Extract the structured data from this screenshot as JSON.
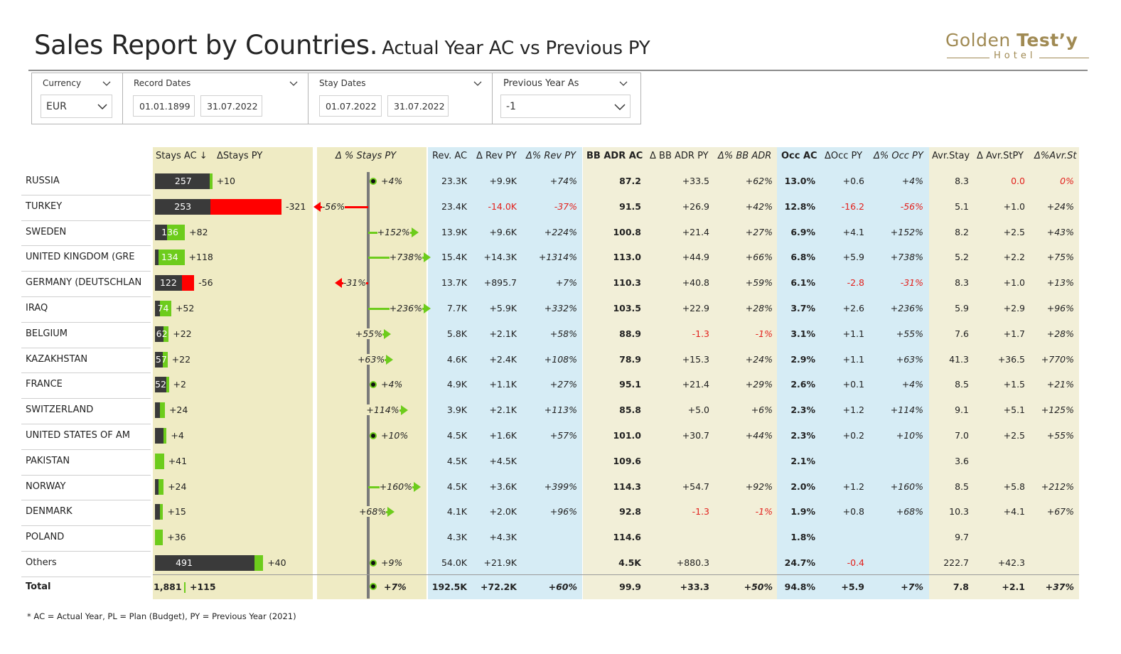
{
  "title": {
    "main": "Sales Report by Countries.",
    "sub": "Actual Year AC vs Previous PY"
  },
  "logo": {
    "part1": "Golden ",
    "part2": "Test’y",
    "sub": "Hotel"
  },
  "filters": {
    "currency": {
      "label": "Currency",
      "value": "EUR"
    },
    "record_dates": {
      "label": "Record Dates",
      "from": "01.01.1899",
      "to": "31.07.2022"
    },
    "stay_dates": {
      "label": "Stay Dates",
      "from": "01.07.2022",
      "to": "31.07.2022"
    },
    "previous_year": {
      "label": "Previous Year As",
      "value": "-1"
    }
  },
  "headers": {
    "stays_ac": "Stays AC ↓",
    "stays_py": "ΔStays PY",
    "pct_stays_py": "Δ % Stays PY",
    "rev_ac": "Rev. AC",
    "rev_py": "Δ Rev PY",
    "pct_rev_py": "Δ% Rev PY",
    "bb_adr_ac": "BB ADR AC",
    "bb_adr_py": "Δ BB ADR PY",
    "pct_bb_adr": "Δ% BB ADR",
    "occ_ac": "Occ AC",
    "occ_py": "ΔOcc PY",
    "pct_occ_py": "Δ% Occ PY",
    "avr_stay": "Avr.Stay",
    "avr_stpy": "Δ Avr.StPY",
    "pct_avr_st": "Δ%Avr.St"
  },
  "colors": {
    "dark": "#3a3a3a",
    "green": "#6dcc1c",
    "red": "#ff0000",
    "beige": "#efebc4",
    "blue": "#d6ecf5",
    "beige_light": "#f2efd8"
  },
  "rows": [
    {
      "country": "RUSSIA",
      "stays_ac": 257,
      "stays_ac_label": "257",
      "delta_stays": 10,
      "delta_stays_label": "+10",
      "pct_stays": 4,
      "pct_stays_label": "+4%",
      "rev_ac": "23.3K",
      "rev_py": "+9.9K",
      "pct_rev": "+74%",
      "adr": "87.2",
      "adr_py": "+33.5",
      "pct_adr": "+62%",
      "occ": "13.0%",
      "occ_py": "+0.6",
      "pct_occ": "+4%",
      "avr": "8.3",
      "avr_py": "0.0",
      "pct_avr": "0%"
    },
    {
      "country": "TURKEY",
      "stays_ac": 253,
      "stays_ac_label": "253",
      "delta_stays": -321,
      "delta_stays_label": "-321",
      "pct_stays": -56,
      "pct_stays_label": "-56%",
      "rev_ac": "23.4K",
      "rev_py": "-14.0K",
      "pct_rev": "-37%",
      "adr": "91.5",
      "adr_py": "+26.9",
      "pct_adr": "+42%",
      "occ": "12.8%",
      "occ_py": "-16.2",
      "pct_occ": "-56%",
      "avr": "5.1",
      "avr_py": "+1.0",
      "pct_avr": "+24%"
    },
    {
      "country": "SWEDEN",
      "stays_ac": 136,
      "stays_ac_label": "136",
      "delta_stays": 82,
      "delta_stays_label": "+82",
      "pct_stays": 152,
      "pct_stays_label": "+152%",
      "rev_ac": "13.9K",
      "rev_py": "+9.6K",
      "pct_rev": "+224%",
      "adr": "100.8",
      "adr_py": "+21.4",
      "pct_adr": "+27%",
      "occ": "6.9%",
      "occ_py": "+4.1",
      "pct_occ": "+152%",
      "avr": "8.2",
      "avr_py": "+2.5",
      "pct_avr": "+43%"
    },
    {
      "country": "UNITED KINGDOM (GRE",
      "stays_ac": 134,
      "stays_ac_label": "134",
      "delta_stays": 118,
      "delta_stays_label": "+118",
      "pct_stays": 738,
      "pct_stays_label": "+738%",
      "rev_ac": "15.4K",
      "rev_py": "+14.3K",
      "pct_rev": "+1314%",
      "adr": "113.0",
      "adr_py": "+44.9",
      "pct_adr": "+66%",
      "occ": "6.8%",
      "occ_py": "+5.9",
      "pct_occ": "+738%",
      "avr": "5.2",
      "avr_py": "+2.2",
      "pct_avr": "+75%"
    },
    {
      "country": "GERMANY (DEUTSCHLAN",
      "stays_ac": 122,
      "stays_ac_label": "122",
      "delta_stays": -56,
      "delta_stays_label": "-56",
      "pct_stays": -31,
      "pct_stays_label": "-31%",
      "rev_ac": "13.7K",
      "rev_py": "+895.7",
      "pct_rev": "+7%",
      "adr": "110.3",
      "adr_py": "+40.8",
      "pct_adr": "+59%",
      "occ": "6.1%",
      "occ_py": "-2.8",
      "pct_occ": "-31%",
      "avr": "8.3",
      "avr_py": "+1.0",
      "pct_avr": "+13%"
    },
    {
      "country": "IRAQ",
      "stays_ac": 74,
      "stays_ac_label": "74",
      "delta_stays": 52,
      "delta_stays_label": "+52",
      "pct_stays": 236,
      "pct_stays_label": "+236%",
      "rev_ac": "7.7K",
      "rev_py": "+5.9K",
      "pct_rev": "+332%",
      "adr": "103.5",
      "adr_py": "+22.9",
      "pct_adr": "+28%",
      "occ": "3.7%",
      "occ_py": "+2.6",
      "pct_occ": "+236%",
      "avr": "5.9",
      "avr_py": "+2.9",
      "pct_avr": "+96%"
    },
    {
      "country": "BELGIUM",
      "stays_ac": 62,
      "stays_ac_label": "62",
      "delta_stays": 22,
      "delta_stays_label": "+22",
      "pct_stays": 55,
      "pct_stays_label": "+55%",
      "rev_ac": "5.8K",
      "rev_py": "+2.1K",
      "pct_rev": "+58%",
      "adr": "88.9",
      "adr_py": "-1.3",
      "pct_adr": "-1%",
      "occ": "3.1%",
      "occ_py": "+1.1",
      "pct_occ": "+55%",
      "avr": "7.6",
      "avr_py": "+1.7",
      "pct_avr": "+28%"
    },
    {
      "country": "KAZAKHSTAN",
      "stays_ac": 57,
      "stays_ac_label": "57",
      "delta_stays": 22,
      "delta_stays_label": "+22",
      "pct_stays": 63,
      "pct_stays_label": "+63%",
      "rev_ac": "4.6K",
      "rev_py": "+2.4K",
      "pct_rev": "+108%",
      "adr": "78.9",
      "adr_py": "+15.3",
      "pct_adr": "+24%",
      "occ": "2.9%",
      "occ_py": "+1.1",
      "pct_occ": "+63%",
      "avr": "41.3",
      "avr_py": "+36.5",
      "pct_avr": "+770%"
    },
    {
      "country": "FRANCE",
      "stays_ac": 52,
      "stays_ac_label": "52",
      "delta_stays": 2,
      "delta_stays_label": "+2",
      "pct_stays": 4,
      "pct_stays_label": "+4%",
      "rev_ac": "4.9K",
      "rev_py": "+1.1K",
      "pct_rev": "+27%",
      "adr": "95.1",
      "adr_py": "+21.4",
      "pct_adr": "+29%",
      "occ": "2.6%",
      "occ_py": "+0.1",
      "pct_occ": "+4%",
      "avr": "8.5",
      "avr_py": "+1.5",
      "pct_avr": "+21%"
    },
    {
      "country": "SWITZERLAND",
      "stays_ac": 45,
      "stays_ac_label": "",
      "delta_stays": 24,
      "delta_stays_label": "+24",
      "pct_stays": 114,
      "pct_stays_label": "+114%",
      "rev_ac": "3.9K",
      "rev_py": "+2.1K",
      "pct_rev": "+113%",
      "adr": "85.8",
      "adr_py": "+5.0",
      "pct_adr": "+6%",
      "occ": "2.3%",
      "occ_py": "+1.2",
      "pct_occ": "+114%",
      "avr": "9.1",
      "avr_py": "+5.1",
      "pct_avr": "+125%"
    },
    {
      "country": "UNITED STATES OF AM",
      "stays_ac": 44,
      "stays_ac_label": "",
      "delta_stays": 4,
      "delta_stays_label": "+4",
      "pct_stays": 10,
      "pct_stays_label": "+10%",
      "rev_ac": "4.5K",
      "rev_py": "+1.6K",
      "pct_rev": "+57%",
      "adr": "101.0",
      "adr_py": "+30.7",
      "pct_adr": "+44%",
      "occ": "2.3%",
      "occ_py": "+0.2",
      "pct_occ": "+10%",
      "avr": "7.0",
      "avr_py": "+2.5",
      "pct_avr": "+55%"
    },
    {
      "country": "PAKISTAN",
      "stays_ac": 41,
      "stays_ac_label": "",
      "delta_stays": 41,
      "delta_stays_label": "+41",
      "pct_stays": null,
      "pct_stays_label": "",
      "rev_ac": "4.5K",
      "rev_py": "+4.5K",
      "pct_rev": "",
      "adr": "109.6",
      "adr_py": "",
      "pct_adr": "",
      "occ": "2.1%",
      "occ_py": "",
      "pct_occ": "",
      "avr": "3.6",
      "avr_py": "",
      "pct_avr": ""
    },
    {
      "country": "NORWAY",
      "stays_ac": 39,
      "stays_ac_label": "",
      "delta_stays": 24,
      "delta_stays_label": "+24",
      "pct_stays": 160,
      "pct_stays_label": "+160%",
      "rev_ac": "4.5K",
      "rev_py": "+3.6K",
      "pct_rev": "+399%",
      "adr": "114.3",
      "adr_py": "+54.7",
      "pct_adr": "+92%",
      "occ": "2.0%",
      "occ_py": "+1.2",
      "pct_occ": "+160%",
      "avr": "8.5",
      "avr_py": "+5.8",
      "pct_avr": "+212%"
    },
    {
      "country": "DENMARK",
      "stays_ac": 37,
      "stays_ac_label": "",
      "delta_stays": 15,
      "delta_stays_label": "+15",
      "pct_stays": 68,
      "pct_stays_label": "+68%",
      "rev_ac": "4.1K",
      "rev_py": "+2.0K",
      "pct_rev": "+96%",
      "adr": "92.8",
      "adr_py": "-1.3",
      "pct_adr": "-1%",
      "occ": "1.9%",
      "occ_py": "+0.8",
      "pct_occ": "+68%",
      "avr": "10.3",
      "avr_py": "+4.1",
      "pct_avr": "+67%"
    },
    {
      "country": "POLAND",
      "stays_ac": 36,
      "stays_ac_label": "",
      "delta_stays": 36,
      "delta_stays_label": "+36",
      "pct_stays": null,
      "pct_stays_label": "",
      "rev_ac": "4.3K",
      "rev_py": "+4.3K",
      "pct_rev": "",
      "adr": "114.6",
      "adr_py": "",
      "pct_adr": "",
      "occ": "1.8%",
      "occ_py": "",
      "pct_occ": "",
      "avr": "9.7",
      "avr_py": "",
      "pct_avr": ""
    },
    {
      "country": "Others",
      "stays_ac": 491,
      "stays_ac_label": "491",
      "delta_stays": 40,
      "delta_stays_label": "+40",
      "pct_stays": 9,
      "pct_stays_label": "+9%",
      "rev_ac": "54.0K",
      "rev_py": "+21.9K",
      "pct_rev": "",
      "adr": "4.5K",
      "adr_py": "+880.3",
      "pct_adr": "",
      "occ": "24.7%",
      "occ_py": "-0.4",
      "pct_occ": "",
      "avr": "222.7",
      "avr_py": "+42.3",
      "pct_avr": ""
    }
  ],
  "total": {
    "label": "Total",
    "stays_ac": "1,881",
    "delta_stays": "+115",
    "pct_stays": 7,
    "pct_stays_label": "+7%",
    "rev_ac": "192.5K",
    "rev_py": "+72.2K",
    "pct_rev": "+60%",
    "adr": "99.9",
    "adr_py": "+33.3",
    "pct_adr": "+50%",
    "occ": "94.8%",
    "occ_py": "+5.9",
    "pct_occ": "+7%",
    "avr": "7.8",
    "avr_py": "+2.1",
    "pct_avr": "+37%"
  },
  "footnote": "* AC = Actual Year, PL = Plan (Budget),  PY = Previous Year (2021)"
}
